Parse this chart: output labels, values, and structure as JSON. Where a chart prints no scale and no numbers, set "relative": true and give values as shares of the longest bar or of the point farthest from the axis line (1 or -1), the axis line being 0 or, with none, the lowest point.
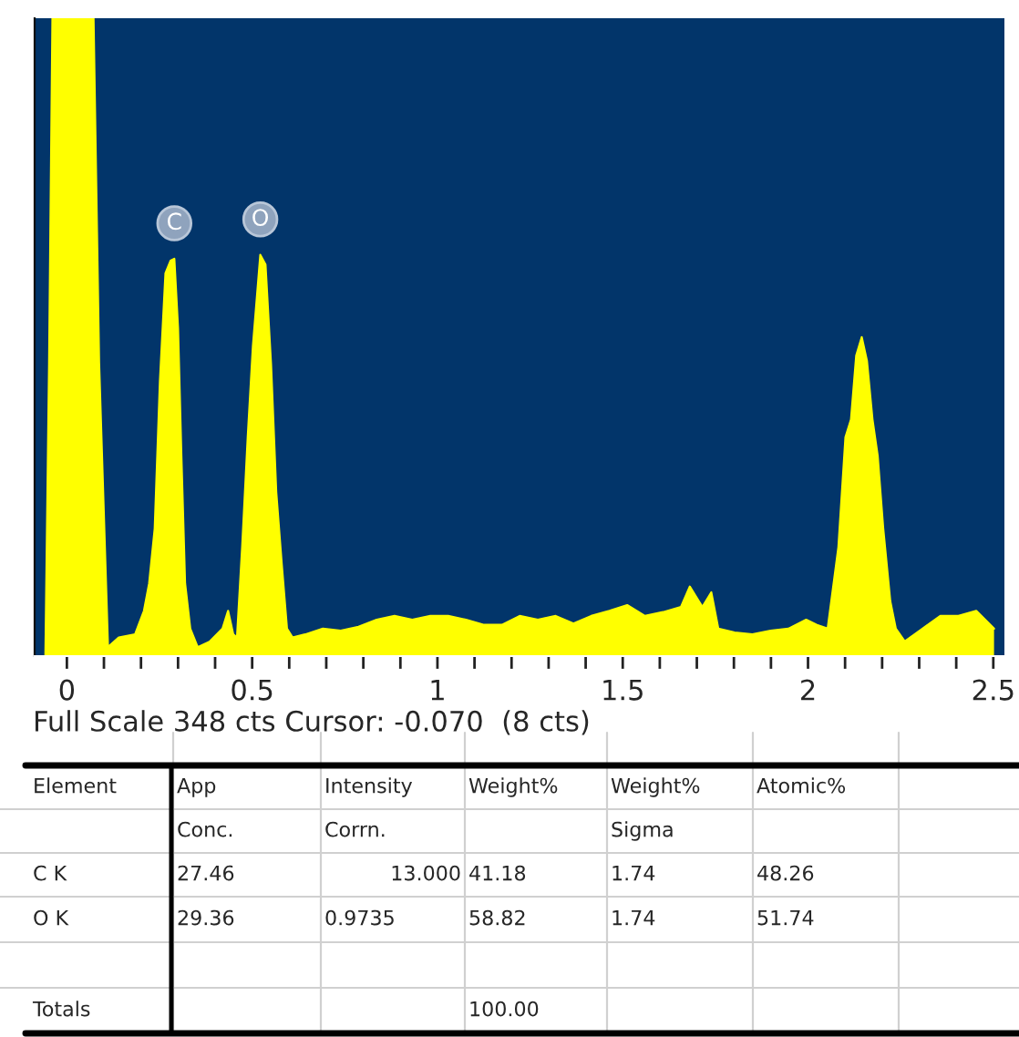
{
  "chart_data": {
    "type": "area",
    "relative": true,
    "x": [
      -0.058,
      -0.048,
      -0.039,
      0.072,
      0.087,
      0.111,
      0.14,
      0.184,
      0.208,
      0.222,
      0.237,
      0.251,
      0.266,
      0.28,
      0.29,
      0.3,
      0.309,
      0.319,
      0.333,
      0.353,
      0.386,
      0.42,
      0.435,
      0.449,
      0.459,
      0.473,
      0.488,
      0.502,
      0.522,
      0.536,
      0.551,
      0.565,
      0.58,
      0.594,
      0.609,
      0.643,
      0.691,
      0.739,
      0.787,
      0.836,
      0.884,
      0.932,
      0.981,
      1.029,
      1.077,
      1.126,
      1.174,
      1.222,
      1.271,
      1.319,
      1.367,
      1.415,
      1.464,
      1.512,
      1.56,
      1.609,
      1.657,
      1.681,
      1.715,
      1.739,
      1.758,
      1.802,
      1.85,
      1.899,
      1.947,
      1.995,
      2.024,
      2.053,
      2.082,
      2.101,
      2.116,
      2.13,
      2.145,
      2.159,
      2.174,
      2.188,
      2.203,
      2.222,
      2.237,
      2.261,
      2.309,
      2.357,
      2.406,
      2.454,
      2.502
    ],
    "series": [
      {
        "color": "#ffff00",
        "values": [
          0,
          0.46,
          1,
          1,
          0.46,
          0.014,
          0.029,
          0.034,
          0.071,
          0.114,
          0.2,
          0.43,
          0.6,
          0.62,
          0.623,
          0.514,
          0.314,
          0.114,
          0.043,
          0.014,
          0.023,
          0.043,
          0.071,
          0.034,
          0.029,
          0.171,
          0.343,
          0.486,
          0.629,
          0.614,
          0.457,
          0.257,
          0.143,
          0.043,
          0.029,
          0.034,
          0.043,
          0.04,
          0.046,
          0.057,
          0.063,
          0.057,
          0.063,
          0.063,
          0.057,
          0.049,
          0.049,
          0.063,
          0.057,
          0.063,
          0.051,
          0.063,
          0.071,
          0.08,
          0.063,
          0.069,
          0.077,
          0.109,
          0.077,
          0.1,
          0.043,
          0.037,
          0.034,
          0.04,
          0.043,
          0.057,
          0.049,
          0.043,
          0.171,
          0.343,
          0.371,
          0.471,
          0.5,
          0.463,
          0.371,
          0.314,
          0.2,
          0.086,
          0.043,
          0.023,
          0.043,
          0.063,
          0.063,
          0.071,
          0.043
        ]
      }
    ],
    "xlim": [
      -0.087,
      2.53
    ],
    "xticks": [
      0,
      {
        "value": 0.1,
        "label": null
      },
      {
        "value": 0.2,
        "label": null
      },
      {
        "value": 0.3,
        "label": null
      },
      {
        "value": 0.4,
        "label": null
      },
      0.5,
      {
        "value": 0.6,
        "label": null
      },
      {
        "value": 0.7,
        "label": null
      },
      {
        "value": 0.8,
        "label": null
      },
      {
        "value": 0.9,
        "label": null
      },
      1,
      {
        "value": 1.1,
        "label": null
      },
      {
        "value": 1.2,
        "label": null
      },
      {
        "value": 1.3,
        "label": null
      },
      {
        "value": 1.4,
        "label": null
      },
      1.5,
      {
        "value": 1.6,
        "label": null
      },
      {
        "value": 1.7,
        "label": null
      },
      {
        "value": 1.8,
        "label": null
      },
      {
        "value": 1.9,
        "label": null
      },
      2,
      {
        "value": 2.1,
        "label": null
      },
      {
        "value": 2.2,
        "label": null
      },
      {
        "value": 2.3,
        "label": null
      },
      {
        "value": 2.4,
        "label": null
      },
      2.5
    ],
    "grid": false,
    "legend": false,
    "annotations": [
      {
        "text": "C",
        "x": 0.29,
        "y": 0.623
      },
      {
        "text": "O",
        "x": 0.522,
        "y": 0.629
      },
      "Full Scale 348 cts Cursor: -0.070  (8 cts)",
      "Element",
      "App",
      "Intensity",
      "Weight%",
      "Weight%",
      "Atomic%",
      "Conc.",
      "Corrn.",
      "Sigma",
      "C K",
      "27.46",
      "13.000",
      "41.18",
      "1.74",
      "48.26",
      "O K",
      "29.36",
      "0.9735",
      "58.82",
      "1.74",
      "51.74",
      "Totals",
      "100.00"
    ]
  }
}
